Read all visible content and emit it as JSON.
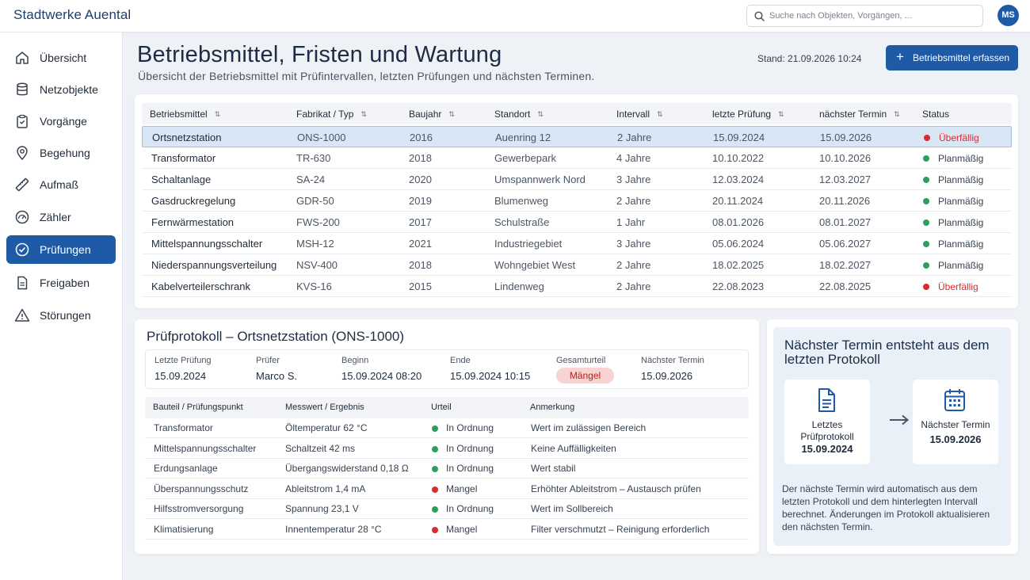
{
  "app": {
    "brand": "Stadtwerke Auental"
  },
  "search": {
    "placeholder": "Suche nach Objekten, Vorgängen, ..."
  },
  "user": {
    "initials": "MS"
  },
  "sidebar": {
    "items": [
      {
        "label": "Übersicht",
        "icon": "home-icon",
        "active": false
      },
      {
        "label": "Netzobjekte",
        "icon": "database-icon",
        "active": false
      },
      {
        "label": "Vorgänge",
        "icon": "clipboard-icon",
        "active": false
      },
      {
        "label": "Begehung",
        "icon": "map-pin-icon",
        "active": false
      },
      {
        "label": "Aufmaß",
        "icon": "ruler-icon",
        "active": false
      },
      {
        "label": "Zähler",
        "icon": "gauge-icon",
        "active": false
      },
      {
        "label": "Prüfungen",
        "icon": "check-circle-icon",
        "active": true
      },
      {
        "label": "Freigaben",
        "icon": "document-icon",
        "active": false
      },
      {
        "label": "Störungen",
        "icon": "warning-icon",
        "active": false
      }
    ]
  },
  "header": {
    "title": "Betriebsmittel, Fristen und Wartung",
    "subtitle": "Übersicht der Betriebsmittel mit Prüfintervallen, letzten Prüfungen und nächsten Terminen.",
    "stand": "Stand: 21.09.2026 10:24",
    "add_button": "Betriebsmittel erfassen"
  },
  "table": {
    "columns": [
      "Betriebsmittel",
      "Fabrikat / Typ",
      "Baujahr",
      "Standort",
      "Intervall",
      "letzte Prüfung",
      "nächster Termin",
      "Status"
    ],
    "rows": [
      {
        "name": "Ortsnetzstation",
        "typ": "ONS-1000",
        "baujahr": "2016",
        "standort": "Auenring 12",
        "intervall": "2 Jahre",
        "letzte": "15.09.2024",
        "naechster": "15.09.2026",
        "status": "Überfällig",
        "overdue": true
      },
      {
        "name": "Transformator",
        "typ": "TR-630",
        "baujahr": "2018",
        "standort": "Gewerbepark",
        "intervall": "4 Jahre",
        "letzte": "10.10.2022",
        "naechster": "10.10.2026",
        "status": "Planmäßig",
        "overdue": false
      },
      {
        "name": "Schaltanlage",
        "typ": "SA-24",
        "baujahr": "2020",
        "standort": "Umspannwerk Nord",
        "intervall": "3 Jahre",
        "letzte": "12.03.2024",
        "naechster": "12.03.2027",
        "status": "Planmäßig",
        "overdue": false
      },
      {
        "name": "Gasdruckregelung",
        "typ": "GDR-50",
        "baujahr": "2019",
        "standort": "Blumenweg",
        "intervall": "2 Jahre",
        "letzte": "20.11.2024",
        "naechster": "20.11.2026",
        "status": "Planmäßig",
        "overdue": false
      },
      {
        "name": "Fernwärmestation",
        "typ": "FWS-200",
        "baujahr": "2017",
        "standort": "Schulstraße",
        "intervall": "1 Jahr",
        "letzte": "08.01.2026",
        "naechster": "08.01.2027",
        "status": "Planmäßig",
        "overdue": false
      },
      {
        "name": "Mittelspannungsschalter",
        "typ": "MSH-12",
        "baujahr": "2021",
        "standort": "Industriegebiet",
        "intervall": "3 Jahre",
        "letzte": "05.06.2024",
        "naechster": "05.06.2027",
        "status": "Planmäßig",
        "overdue": false
      },
      {
        "name": "Niederspannungsverteilung",
        "typ": "NSV-400",
        "baujahr": "2018",
        "standort": "Wohngebiet West",
        "intervall": "2 Jahre",
        "letzte": "18.02.2025",
        "naechster": "18.02.2027",
        "status": "Planmäßig",
        "overdue": false
      },
      {
        "name": "Kabelverteilerschrank",
        "typ": "KVS-16",
        "baujahr": "2015",
        "standort": "Lindenweg",
        "intervall": "2 Jahre",
        "letzte": "22.08.2023",
        "naechster": "22.08.2025",
        "status": "Überfällig",
        "overdue": true
      }
    ]
  },
  "protocol": {
    "title": "Prüfprotokoll – Ortsnetzstation (ONS-1000)",
    "meta": {
      "letzte_label": "Letzte Prüfung",
      "letzte_value": "15.09.2024",
      "pruefer_label": "Prüfer",
      "pruefer_value": "Marco S.",
      "beginn_label": "Beginn",
      "beginn_value": "15.09.2024 08:20",
      "ende_label": "Ende",
      "ende_value": "15.09.2024 10:15",
      "urteil_label": "Gesamturteil",
      "urteil_value": "Mängel",
      "naechster_label": "Nächster Termin",
      "naechster_value": "15.09.2026"
    },
    "columns": [
      "Bauteil / Prüfungspunkt",
      "Messwert / Ergebnis",
      "Urteil",
      "Anmerkung"
    ],
    "rows": [
      {
        "bauteil": "Transformator",
        "messwert": "Öltemperatur 62 °C",
        "urteil": "In Ordnung",
        "ok": true,
        "anmerkung": "Wert im zulässigen Bereich"
      },
      {
        "bauteil": "Mittelspannungsschalter",
        "messwert": "Schaltzeit 42 ms",
        "urteil": "In Ordnung",
        "ok": true,
        "anmerkung": "Keine Auffälligkeiten"
      },
      {
        "bauteil": "Erdungsanlage",
        "messwert": "Übergangswiderstand 0,18 Ω",
        "urteil": "In Ordnung",
        "ok": true,
        "anmerkung": "Wert stabil"
      },
      {
        "bauteil": "Überspannungsschutz",
        "messwert": "Ableitstrom 1,4 mA",
        "urteil": "Mangel",
        "ok": false,
        "anmerkung": "Erhöhter Ableitstrom – Austausch prüfen"
      },
      {
        "bauteil": "Hilfsstromversorgung",
        "messwert": "Spannung 23,1 V",
        "urteil": "In Ordnung",
        "ok": true,
        "anmerkung": "Wert im Sollbereich"
      },
      {
        "bauteil": "Klimatisierung",
        "messwert": "Innentemperatur 28 °C",
        "urteil": "Mangel",
        "ok": false,
        "anmerkung": "Filter verschmutzt – Reinigung erforderlich"
      }
    ]
  },
  "info": {
    "title": "Nächster Termin entsteht aus dem letzten Protokoll",
    "left_label": "Letztes Prüfprotokoll",
    "left_date": "15.09.2024",
    "right_label": "Nächster Termin",
    "right_date": "15.09.2026",
    "text": "Der nächste Termin wird automatisch aus dem letzten Protokoll und dem hinterlegten Intervall berechnet. Änderungen im Protokoll aktualisieren den nächsten Termin."
  },
  "colors": {
    "accent": "#1f5aa6",
    "ok": "#2e9e5b",
    "overdue": "#d92d2d"
  }
}
